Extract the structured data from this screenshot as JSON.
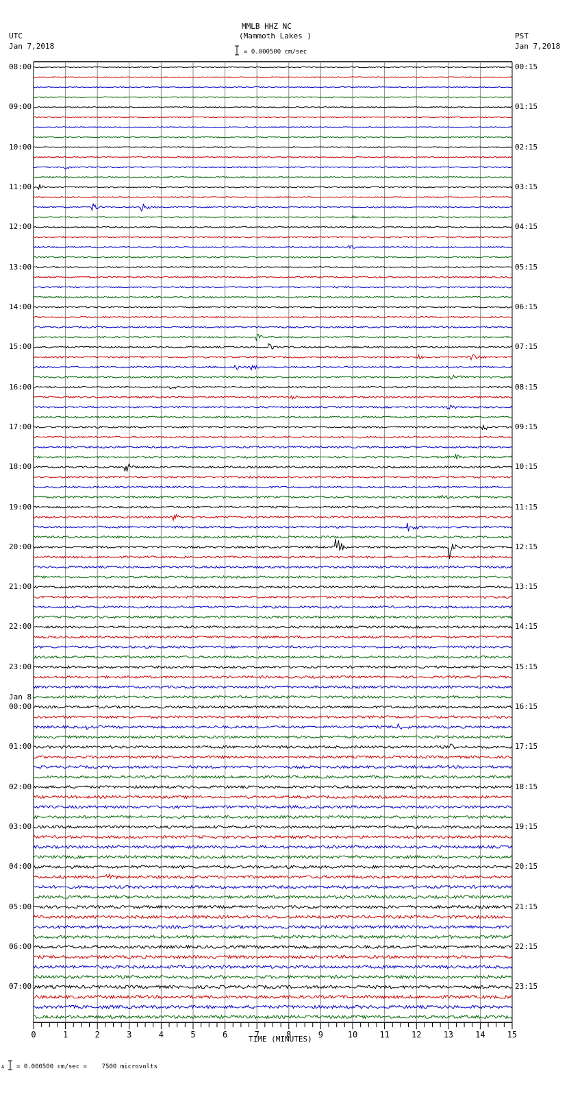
{
  "header": {
    "station": "MMLB HHZ NC",
    "location": "(Mammoth Lakes )",
    "scale_label": "= 0.000500 cm/sec",
    "left_tz": "UTC",
    "left_date": "Jan 7,2018",
    "right_tz": "PST",
    "right_date": "Jan 7,2018"
  },
  "footer": {
    "scale_note": "= 0.000500 cm/sec =    7500 microvolts",
    "prefix": "A"
  },
  "chart_data": {
    "type": "line",
    "title": "MMLB HHZ NC (Mammoth Lakes )",
    "xlabel": "TIME (MINUTES)",
    "ylabel": "",
    "xlim": [
      0,
      15
    ],
    "x_ticks": [
      "0",
      "1",
      "2",
      "3",
      "4",
      "5",
      "6",
      "7",
      "8",
      "9",
      "10",
      "11",
      "12",
      "13",
      "14",
      "15"
    ],
    "traces_per_hour": 4,
    "trace_count": 96,
    "trace_colors": [
      "#000000",
      "#cc0000",
      "#0000cc",
      "#006600"
    ],
    "grid": true,
    "left_labels": [
      "08:00",
      "09:00",
      "10:00",
      "11:00",
      "12:00",
      "13:00",
      "14:00",
      "15:00",
      "16:00",
      "17:00",
      "18:00",
      "19:00",
      "20:00",
      "21:00",
      "22:00",
      "23:00",
      "00:00",
      "01:00",
      "02:00",
      "03:00",
      "04:00",
      "05:00",
      "06:00",
      "07:00"
    ],
    "left_date_change": {
      "index": 16,
      "label": "Jan 8"
    },
    "right_labels": [
      "00:15",
      "01:15",
      "02:15",
      "03:15",
      "04:15",
      "05:15",
      "06:15",
      "07:15",
      "08:15",
      "09:15",
      "10:15",
      "11:15",
      "12:15",
      "13:15",
      "14:15",
      "15:15",
      "16:15",
      "17:15",
      "18:15",
      "19:15",
      "20:15",
      "21:15",
      "22:15",
      "23:15"
    ],
    "events": [
      {
        "trace": 10,
        "minute": 1.0,
        "amp": 4
      },
      {
        "trace": 12,
        "minute": 0.2,
        "amp": 4
      },
      {
        "trace": 14,
        "minute": 1.85,
        "amp": 7
      },
      {
        "trace": 14,
        "minute": 3.4,
        "amp": 7
      },
      {
        "trace": 15,
        "minute": 10.0,
        "amp": 3
      },
      {
        "trace": 18,
        "minute": 9.9,
        "amp": 5
      },
      {
        "trace": 27,
        "minute": 7.0,
        "amp": 6
      },
      {
        "trace": 28,
        "minute": 7.4,
        "amp": 5
      },
      {
        "trace": 29,
        "minute": 12.05,
        "amp": 5
      },
      {
        "trace": 29,
        "minute": 13.75,
        "amp": 5
      },
      {
        "trace": 30,
        "minute": 6.3,
        "amp": 5
      },
      {
        "trace": 30,
        "minute": 6.85,
        "amp": 6
      },
      {
        "trace": 31,
        "minute": 13.1,
        "amp": 7
      },
      {
        "trace": 32,
        "minute": 4.3,
        "amp": 6
      },
      {
        "trace": 33,
        "minute": 8.1,
        "amp": 4
      },
      {
        "trace": 34,
        "minute": 13.0,
        "amp": 5
      },
      {
        "trace": 36,
        "minute": 14.1,
        "amp": 5
      },
      {
        "trace": 39,
        "minute": 13.25,
        "amp": 4
      },
      {
        "trace": 40,
        "minute": 2.9,
        "amp": 9
      },
      {
        "trace": 43,
        "minute": 12.85,
        "amp": 4
      },
      {
        "trace": 45,
        "minute": 4.4,
        "amp": 7
      },
      {
        "trace": 46,
        "minute": 11.75,
        "amp": 10
      },
      {
        "trace": 48,
        "minute": 9.5,
        "amp": 14
      },
      {
        "trace": 48,
        "minute": 13.0,
        "amp": 22
      },
      {
        "trace": 66,
        "minute": 1.6,
        "amp": 5
      },
      {
        "trace": 66,
        "minute": 11.4,
        "amp": 6
      },
      {
        "trace": 68,
        "minute": 13.1,
        "amp": 5
      },
      {
        "trace": 81,
        "minute": 2.3,
        "amp": 7
      }
    ]
  }
}
